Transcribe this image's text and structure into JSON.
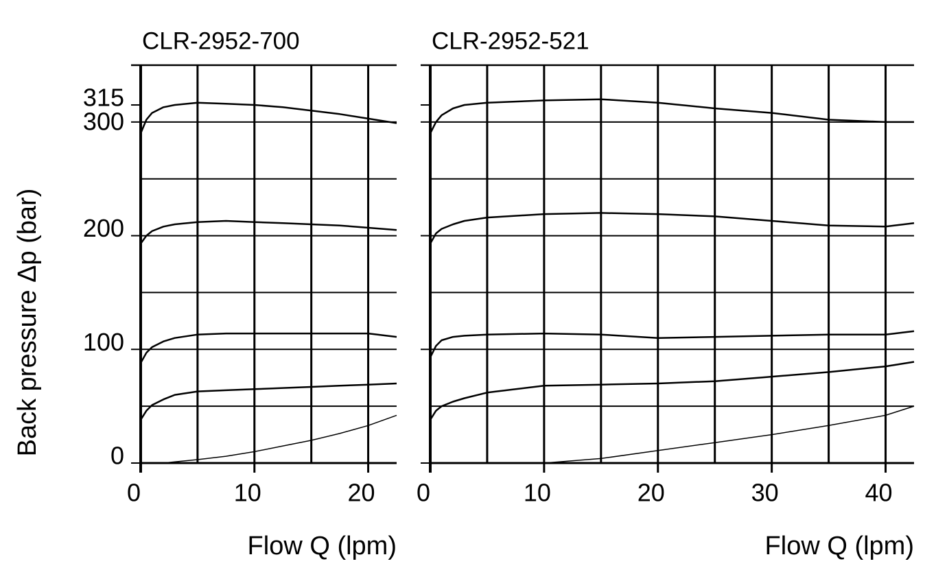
{
  "chart_data": [
    {
      "type": "line",
      "title": "CLR-2952-700",
      "xlabel": "Flow Q (lpm)",
      "ylabel": "Back pressure Δp (bar)",
      "x": [
        0,
        0.5,
        1,
        2,
        3,
        5,
        7.5,
        10,
        12.5,
        15,
        17.5,
        20,
        22.5
      ],
      "series": [
        {
          "color": "#000000",
          "width": 2.5,
          "values": [
            290,
            302,
            308,
            313,
            315,
            317,
            316,
            315,
            313,
            310,
            307,
            303,
            299
          ]
        },
        {
          "color": "#000000",
          "width": 2.5,
          "values": [
            193,
            200,
            204,
            208,
            210,
            212,
            213,
            212,
            211,
            210,
            209,
            207,
            205
          ]
        },
        {
          "color": "#000000",
          "width": 2.5,
          "values": [
            88,
            97,
            102,
            107,
            110,
            113,
            114,
            114,
            114,
            114,
            114,
            114,
            111
          ]
        },
        {
          "color": "#000000",
          "width": 2.5,
          "values": [
            38,
            46,
            51,
            56,
            60,
            63,
            64,
            65,
            66,
            67,
            68,
            69,
            70
          ]
        },
        {
          "color": "#000000",
          "width": 1.5,
          "values": [
            0,
            0,
            0,
            0,
            1,
            3,
            6,
            10,
            15,
            20,
            26,
            33,
            42
          ]
        }
      ],
      "xlim": [
        0,
        22.5
      ],
      "ylim": [
        0,
        350
      ],
      "xticks": [
        0,
        10,
        20
      ],
      "yticks": [
        0,
        100,
        200,
        300,
        315
      ],
      "xgrid": [
        5,
        10,
        15,
        20
      ],
      "ygrid": [
        0,
        50,
        100,
        150,
        200,
        250,
        300
      ],
      "show_ytick_labels": true
    },
    {
      "type": "line",
      "title": "CLR-2952-521",
      "xlabel": "Flow Q (lpm)",
      "x": [
        0,
        0.5,
        1,
        2,
        3,
        5,
        10,
        15,
        20,
        25,
        30,
        35,
        40,
        42.5
      ],
      "series": [
        {
          "color": "#000000",
          "width": 2.5,
          "values": [
            290,
            300,
            306,
            312,
            315,
            317,
            319,
            320,
            317,
            312,
            308,
            302,
            300,
            300
          ]
        },
        {
          "color": "#000000",
          "width": 2.5,
          "values": [
            193,
            202,
            206,
            210,
            213,
            216,
            219,
            220,
            219,
            217,
            213,
            209,
            208,
            211
          ]
        },
        {
          "color": "#000000",
          "width": 2.5,
          "values": [
            93,
            103,
            108,
            111,
            112,
            113,
            114,
            113,
            110,
            111,
            112,
            113,
            113,
            116
          ]
        },
        {
          "color": "#000000",
          "width": 2.5,
          "values": [
            38,
            46,
            50,
            54,
            57,
            62,
            68,
            69,
            70,
            72,
            76,
            80,
            85,
            89
          ]
        },
        {
          "color": "#000000",
          "width": 1.5,
          "values": [
            0,
            0,
            0,
            0,
            0,
            0,
            0,
            4,
            11,
            18,
            25,
            33,
            42,
            50
          ]
        }
      ],
      "xlim": [
        0,
        42.5
      ],
      "ylim": [
        0,
        350
      ],
      "xticks": [
        0,
        10,
        20,
        30,
        40
      ],
      "yticks": [
        0,
        100,
        200,
        300,
        315
      ],
      "xgrid": [
        5,
        10,
        15,
        20,
        25,
        30,
        35,
        40
      ],
      "ygrid": [
        0,
        50,
        100,
        150,
        200,
        250,
        300
      ],
      "show_ytick_labels": false
    }
  ]
}
